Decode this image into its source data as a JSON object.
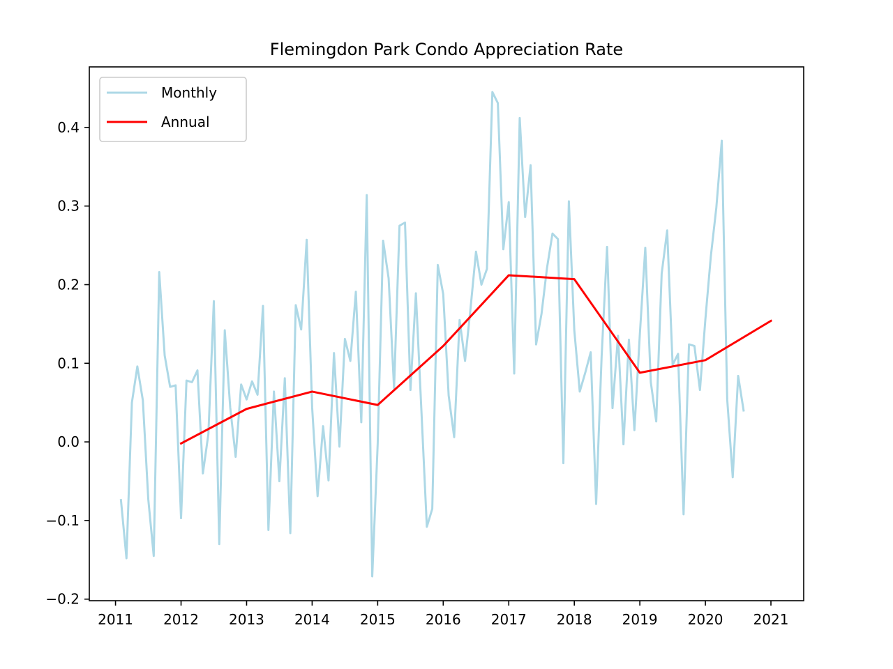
{
  "chart_data": {
    "type": "line",
    "title": "Flemingdon Park Condo Appreciation Rate",
    "xlabel": "",
    "ylabel": "",
    "xlim": [
      2010.6,
      2021.5
    ],
    "ylim": [
      -0.202,
      0.477
    ],
    "xticks": [
      2011,
      2012,
      2013,
      2014,
      2015,
      2016,
      2017,
      2018,
      2019,
      2020,
      2021
    ],
    "xtick_labels": [
      "2011",
      "2012",
      "2013",
      "2014",
      "2015",
      "2016",
      "2017",
      "2018",
      "2019",
      "2020",
      "2021"
    ],
    "yticks": [
      -0.2,
      -0.1,
      0.0,
      0.1,
      0.2,
      0.3,
      0.4
    ],
    "ytick_labels": [
      "−0.2",
      "−0.1",
      "0.0",
      "0.1",
      "0.2",
      "0.3",
      "0.4"
    ],
    "grid": false,
    "legend": "top-left",
    "series": [
      {
        "name": "Monthly",
        "color": "#add8e6",
        "x": [
          2011.083,
          2011.167,
          2011.25,
          2011.333,
          2011.417,
          2011.5,
          2011.583,
          2011.667,
          2011.75,
          2011.833,
          2011.917,
          2012.0,
          2012.083,
          2012.167,
          2012.25,
          2012.333,
          2012.417,
          2012.5,
          2012.583,
          2012.667,
          2012.75,
          2012.833,
          2012.917,
          2013.0,
          2013.083,
          2013.167,
          2013.25,
          2013.333,
          2013.417,
          2013.5,
          2013.583,
          2013.667,
          2013.75,
          2013.833,
          2013.917,
          2014.0,
          2014.083,
          2014.167,
          2014.25,
          2014.333,
          2014.417,
          2014.5,
          2014.583,
          2014.667,
          2014.75,
          2014.833,
          2014.917,
          2015.0,
          2015.083,
          2015.167,
          2015.25,
          2015.333,
          2015.417,
          2015.5,
          2015.583,
          2015.667,
          2015.75,
          2015.833,
          2015.917,
          2016.0,
          2016.083,
          2016.167,
          2016.25,
          2016.333,
          2016.417,
          2016.5,
          2016.583,
          2016.667,
          2016.75,
          2016.833,
          2016.917,
          2017.0,
          2017.083,
          2017.167,
          2017.25,
          2017.333,
          2017.417,
          2017.5,
          2017.583,
          2017.667,
          2017.75,
          2017.833,
          2017.917,
          2018.0,
          2018.083,
          2018.167,
          2018.25,
          2018.333,
          2018.417,
          2018.5,
          2018.583,
          2018.667,
          2018.75,
          2018.833,
          2018.917,
          2019.0,
          2019.083,
          2019.167,
          2019.25,
          2019.333,
          2019.417,
          2019.5,
          2019.583,
          2019.667,
          2019.75,
          2019.833,
          2019.917,
          2020.0,
          2020.083,
          2020.167,
          2020.25,
          2020.333,
          2020.417,
          2020.5,
          2020.583
        ],
        "values": [
          -0.074,
          -0.148,
          0.05,
          0.096,
          0.053,
          -0.073,
          -0.145,
          0.216,
          0.11,
          0.07,
          0.072,
          -0.097,
          0.078,
          0.076,
          0.091,
          -0.04,
          0.01,
          0.179,
          -0.13,
          0.142,
          0.044,
          -0.019,
          0.073,
          0.054,
          0.077,
          0.06,
          0.173,
          -0.112,
          0.064,
          -0.05,
          0.081,
          -0.116,
          0.174,
          0.143,
          0.257,
          0.044,
          -0.069,
          0.02,
          -0.049,
          0.113,
          -0.006,
          0.131,
          0.103,
          0.191,
          0.025,
          0.314,
          -0.171,
          -0.003,
          0.256,
          0.208,
          0.068,
          0.275,
          0.279,
          0.066,
          0.189,
          0.04,
          -0.108,
          -0.085,
          0.225,
          0.188,
          0.059,
          0.006,
          0.155,
          0.103,
          0.17,
          0.242,
          0.2,
          0.22,
          0.445,
          0.431,
          0.245,
          0.305,
          0.087,
          0.412,
          0.286,
          0.352,
          0.124,
          0.163,
          0.221,
          0.265,
          0.258,
          -0.027,
          0.306,
          0.142,
          0.064,
          0.088,
          0.114,
          -0.079,
          0.109,
          0.248,
          0.043,
          0.135,
          -0.003,
          0.13,
          0.015,
          0.137,
          0.247,
          0.076,
          0.026,
          0.214,
          0.269,
          0.098,
          0.112,
          -0.092,
          0.124,
          0.122,
          0.066,
          0.156,
          0.236,
          0.298,
          0.383,
          0.054,
          -0.045,
          0.084,
          0.04
        ]
      },
      {
        "name": "Annual",
        "color": "#ff0000",
        "x": [
          2012.0,
          2013.0,
          2014.0,
          2015.0,
          2016.0,
          2017.0,
          2018.0,
          2019.0,
          2020.0,
          2021.0
        ],
        "values": [
          -0.002,
          0.042,
          0.064,
          0.047,
          0.122,
          0.212,
          0.207,
          0.088,
          0.104,
          0.154
        ]
      }
    ]
  }
}
